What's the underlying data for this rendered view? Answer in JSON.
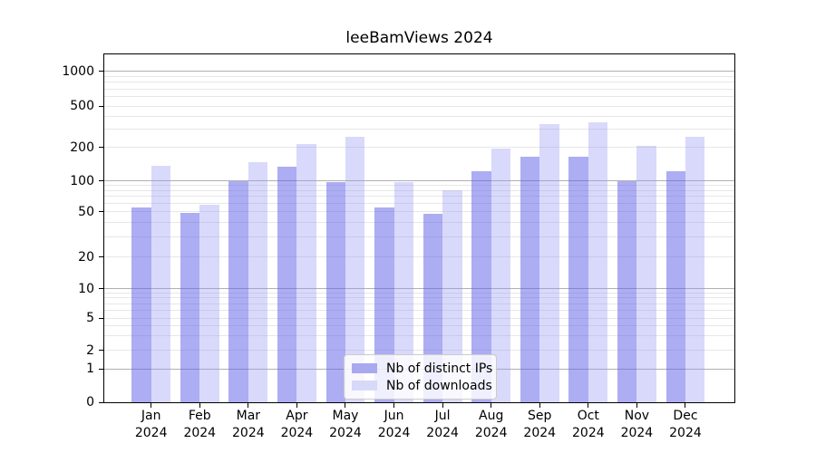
{
  "chart_data": {
    "type": "bar",
    "title": "leeBamViews 2024",
    "x_tick_months": [
      "Jan",
      "Feb",
      "Mar",
      "Apr",
      "May",
      "Jun",
      "Jul",
      "Aug",
      "Sep",
      "Oct",
      "Nov",
      "Dec"
    ],
    "x_tick_year": "2024",
    "y_ticks": [
      0,
      1,
      2,
      5,
      10,
      20,
      50,
      100,
      200,
      500,
      1000
    ],
    "y_scale": "symlog (0 baseline, logarithmic above 1)",
    "ylim": [
      0,
      1400
    ],
    "grid": "horizontal major (1,10,100,1000) + minor log lines",
    "legend_position": "lower center",
    "series": [
      {
        "name": "Nb of distinct IPs",
        "values": [
          55,
          49,
          100,
          133,
          97,
          55,
          48,
          122,
          165,
          163,
          100,
          121
        ]
      },
      {
        "name": "Nb of downloads",
        "values": [
          137,
          58,
          148,
          215,
          252,
          97,
          80,
          193,
          335,
          350,
          207,
          252
        ]
      }
    ],
    "colors": {
      "bar_ips_fill": "rgba(92,92,232,0.50)",
      "bar_downloads_fill": "rgba(150,150,244,0.36)",
      "legend_ips_swatch": "#a9a9ef",
      "legend_downloads_swatch": "#d8d8f8",
      "grid_major": "#b0b0b0",
      "grid_minor": "#e7e7e7",
      "spine": "#000000"
    }
  }
}
